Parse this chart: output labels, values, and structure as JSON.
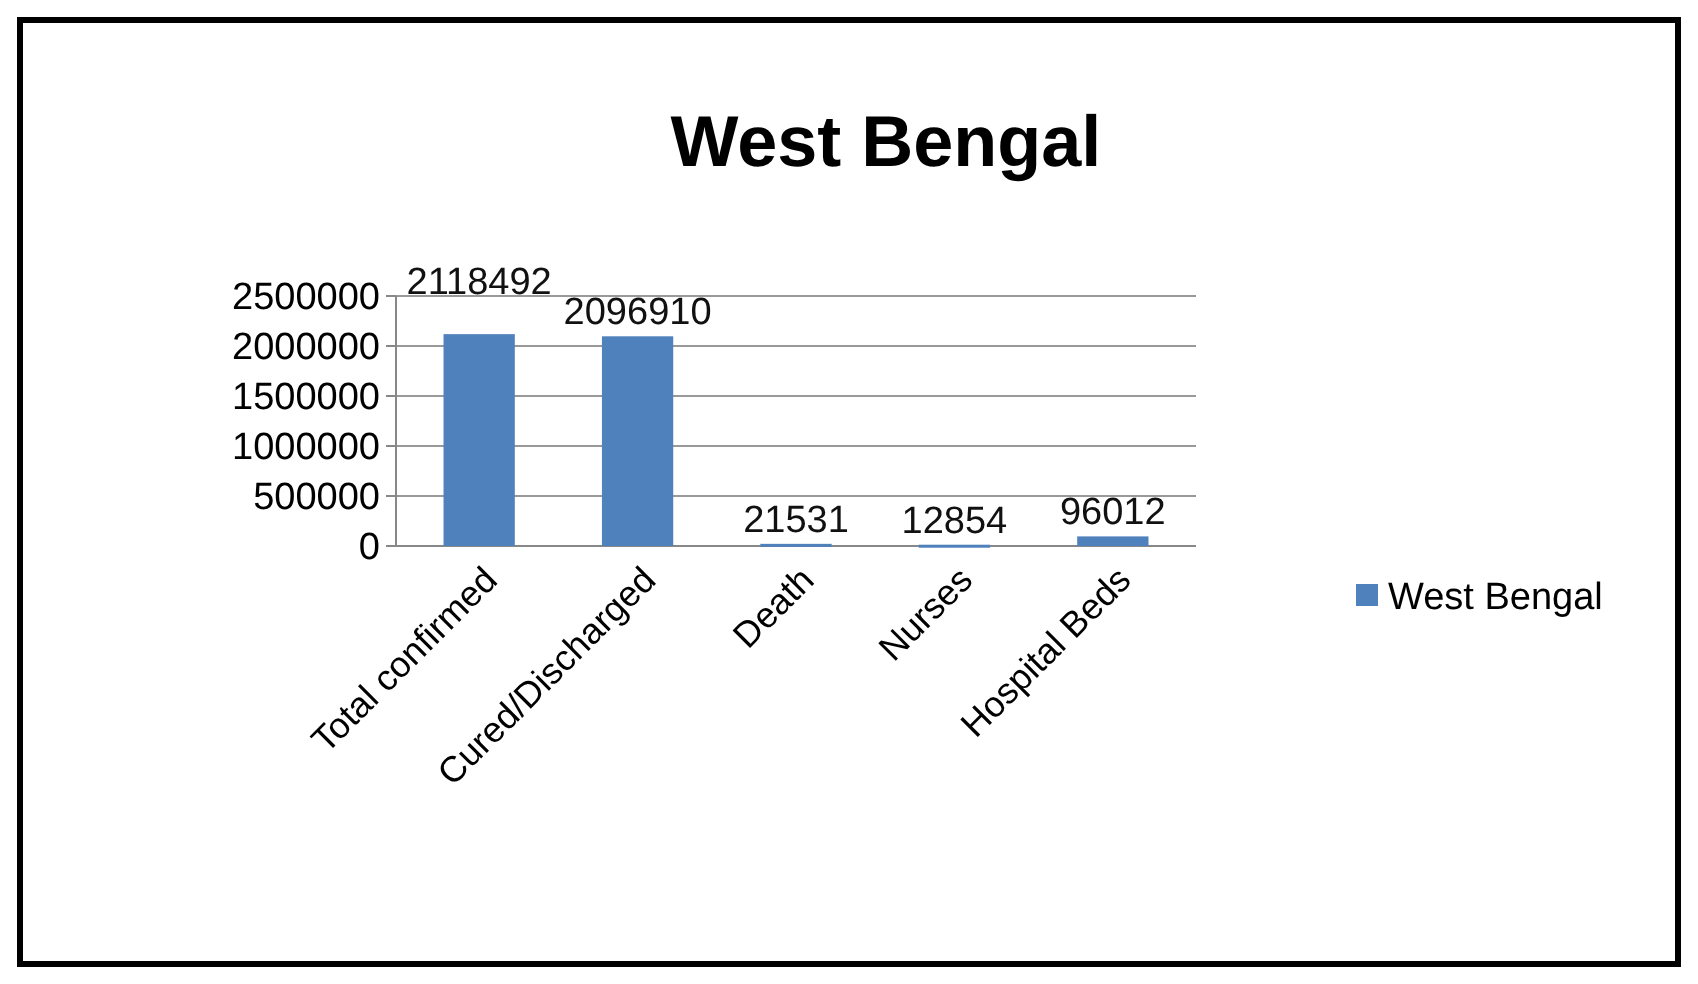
{
  "chart_data": {
    "type": "bar",
    "title": "West Bengal",
    "categories": [
      "Total confirmed",
      "Cured/Discharged",
      "Death",
      "Nurses",
      "Hospital Beds"
    ],
    "series": [
      {
        "name": "West Bengal",
        "color": "#4f81bd",
        "values": [
          2118492,
          2096910,
          21531,
          12854,
          96012
        ]
      }
    ],
    "ylim": [
      0,
      2500000
    ],
    "yticks": [
      0,
      500000,
      1000000,
      1500000,
      2000000,
      2500000
    ],
    "grid": "y",
    "legend": "right",
    "data_labels": true
  }
}
